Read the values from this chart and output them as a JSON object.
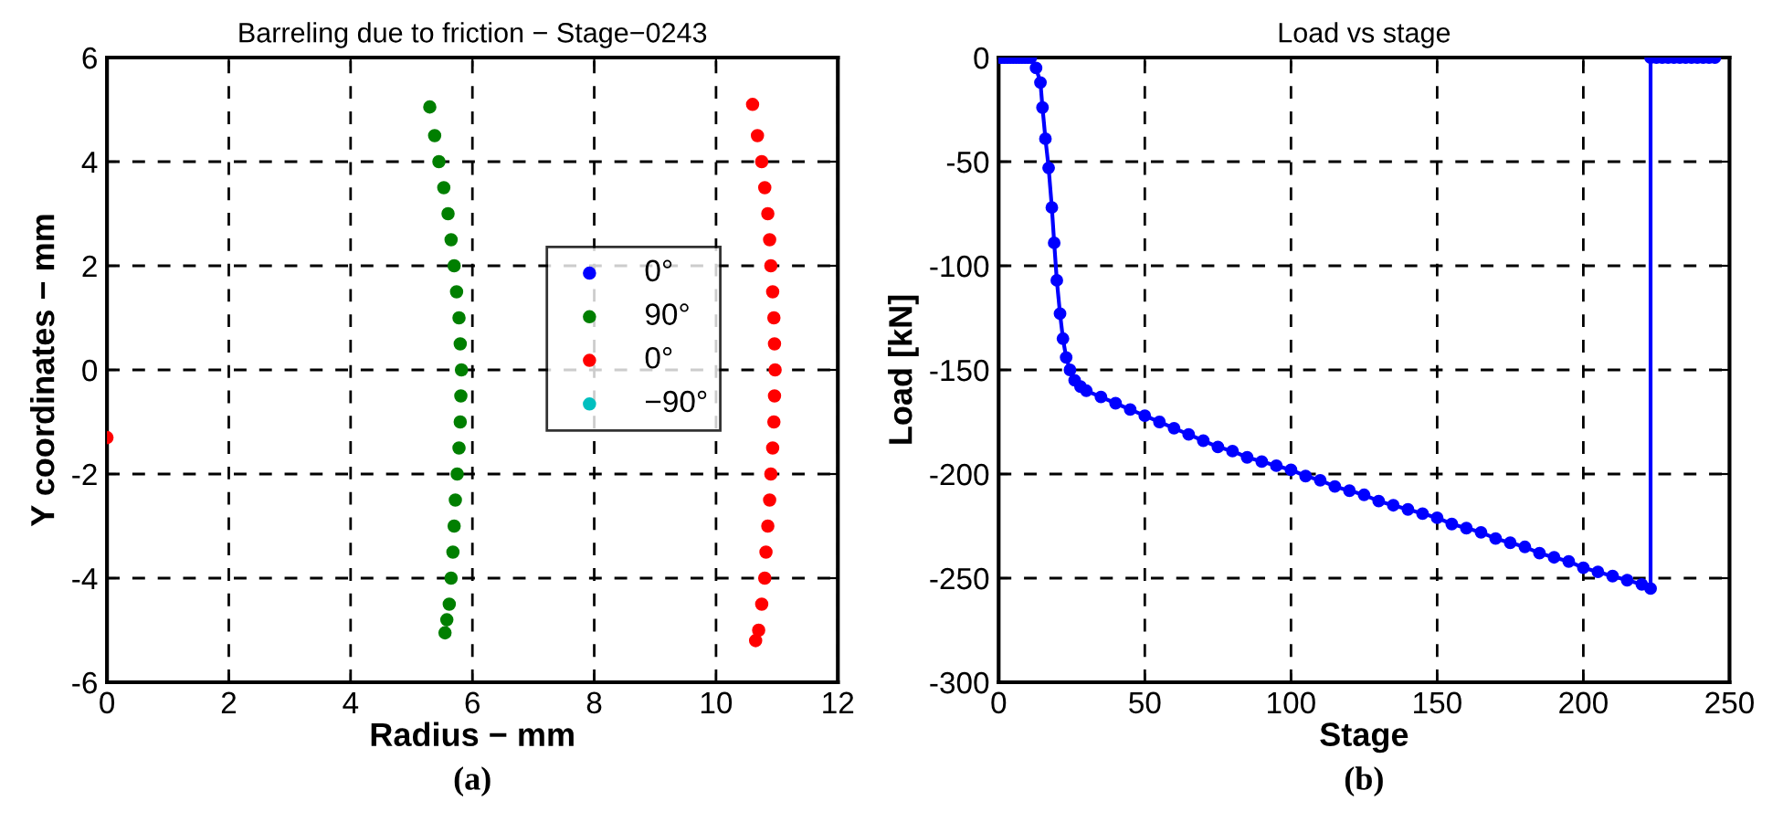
{
  "chart_data": [
    {
      "type": "scatter",
      "title": "Barreling due to friction − Stage−0243",
      "xlabel": "Radius − mm",
      "ylabel": "Y coordinates − mm",
      "xlim": [
        0,
        12
      ],
      "ylim": [
        -6,
        6
      ],
      "xticks": [
        0,
        2,
        4,
        6,
        8,
        10,
        12
      ],
      "yticks": [
        -6,
        -4,
        -2,
        0,
        2,
        4,
        6
      ],
      "grid": true,
      "legend": "right",
      "marker": "circle",
      "annotations": [
        "(a)"
      ],
      "series": [
        {
          "name": "0°",
          "color": "#0000ff"
        },
        {
          "name": "90°",
          "color": "#007f00",
          "x": [
            5.3,
            5.38,
            5.45,
            5.53,
            5.6,
            5.65,
            5.7,
            5.74,
            5.78,
            5.8,
            5.82,
            5.81,
            5.8,
            5.78,
            5.75,
            5.72,
            5.7,
            5.68,
            5.65,
            5.62,
            5.58,
            5.55
          ],
          "values": [
            5.05,
            4.5,
            4,
            3.5,
            3,
            2.5,
            2,
            1.5,
            1,
            0.5,
            0,
            -0.5,
            -1,
            -1.5,
            -2,
            -2.5,
            -3,
            -3.5,
            -4,
            -4.5,
            -4.8,
            -5.05
          ]
        },
        {
          "name": "0°",
          "color": "#ff0000",
          "x": [
            0,
            10.6,
            10.68,
            10.75,
            10.8,
            10.85,
            10.88,
            10.9,
            10.93,
            10.95,
            10.96,
            10.97,
            10.96,
            10.95,
            10.93,
            10.9,
            10.88,
            10.85,
            10.82,
            10.8,
            10.75,
            10.7,
            10.65
          ],
          "values": [
            -1.3,
            5.1,
            4.5,
            4,
            3.5,
            3,
            2.5,
            2,
            1.5,
            1,
            0.5,
            0,
            -0.5,
            -1,
            -1.5,
            -2,
            -2.5,
            -3,
            -3.5,
            -4,
            -4.5,
            -5,
            -5.2
          ]
        },
        {
          "name": "−90°",
          "color": "#00bfbf"
        }
      ]
    },
    {
      "type": "line",
      "title": "Load vs stage",
      "xlabel": "Stage",
      "ylabel": "Load [kN]",
      "xlim": [
        0,
        250
      ],
      "ylim": [
        -300,
        0
      ],
      "xticks": [
        0,
        50,
        100,
        150,
        200,
        250
      ],
      "yticks": [
        -300,
        -250,
        -200,
        -150,
        -100,
        -50,
        0
      ],
      "grid": true,
      "marker": "circle",
      "line_style": "solid",
      "annotations": [
        "(b)"
      ],
      "series": [
        {
          "color": "#0000ff",
          "x": [
            0,
            1,
            2,
            3,
            4,
            5,
            6,
            7,
            8,
            9,
            10,
            11,
            12.8,
            14.3,
            15,
            16,
            17.1,
            18.2,
            19,
            19.9,
            21,
            22,
            23.1,
            24.4,
            26,
            28,
            30,
            35,
            40,
            45,
            50,
            55,
            60,
            65,
            70,
            75,
            80,
            85,
            90,
            95,
            100,
            105,
            110,
            115,
            120,
            125,
            130,
            135,
            140,
            145,
            150,
            155,
            160,
            165,
            170,
            175,
            180,
            185,
            190,
            195,
            200,
            205,
            210,
            215,
            220,
            223,
            223,
            225,
            227,
            229,
            231,
            233,
            235,
            237,
            239,
            241,
            243,
            245
          ],
          "values": [
            0,
            0,
            0,
            0,
            0,
            0,
            0,
            0,
            0,
            0,
            0,
            0,
            -5,
            -12,
            -24,
            -39,
            -53,
            -72,
            -89,
            -107,
            -123,
            -135,
            -144,
            -150,
            -155,
            -158,
            -160,
            -163,
            -166,
            -169,
            -172,
            -175,
            -178,
            -181,
            -184,
            -187,
            -189,
            -192,
            -194,
            -196,
            -198,
            -201,
            -203,
            -206,
            -208,
            -210,
            -213,
            -215,
            -217,
            -219,
            -221,
            -224,
            -226,
            -228,
            -231,
            -233,
            -235,
            -238,
            -240,
            -242,
            -245,
            -247,
            -249,
            -251,
            -253,
            -255,
            0,
            0,
            0,
            0,
            0,
            0,
            0,
            0,
            0,
            0,
            0,
            0
          ]
        }
      ]
    }
  ]
}
